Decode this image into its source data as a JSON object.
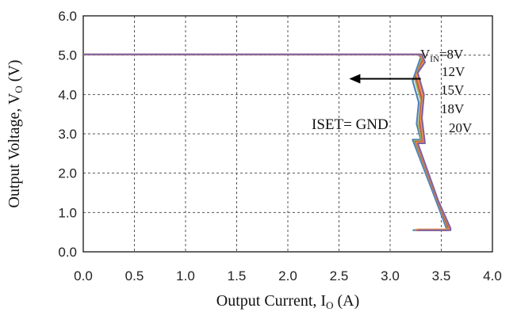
{
  "chart_data": {
    "type": "line",
    "xlabel": {
      "main": "Output Current, I",
      "sub": "O",
      "unit": " (A)"
    },
    "ylabel": {
      "main": "Output Voltage, V",
      "sub": "O",
      "unit": " (V)"
    },
    "xlim": [
      0,
      4
    ],
    "ylim": [
      0,
      6
    ],
    "x_ticks": [
      "0.0",
      "0.5",
      "1.0",
      "1.5",
      "2.0",
      "2.5",
      "3.0",
      "3.5",
      "4.0"
    ],
    "y_ticks": [
      "0.0",
      "1.0",
      "2.0",
      "3.0",
      "4.0",
      "5.0",
      "6.0"
    ],
    "grid": true,
    "legend": "none",
    "annotation_text": "ISET= GND",
    "vin_labels": [
      "=8V",
      "12V",
      "15V",
      "18V",
      "20V"
    ],
    "vin_first_prefix": {
      "main": "V",
      "sub": "IN"
    },
    "arrow": {
      "from": [
        3.3,
        4.4
      ],
      "to": [
        2.6,
        4.4
      ]
    },
    "series": [
      {
        "color": "#4f81bd",
        "x": [
          0,
          0.5,
          1.0,
          1.5,
          2.0,
          2.5,
          3.0,
          3.27,
          3.3,
          3.22,
          3.28,
          3.26,
          3.3,
          3.22,
          3.42,
          3.55,
          3.55,
          3.22
        ],
        "y": [
          5.02,
          5.02,
          5.02,
          5.02,
          5.02,
          5.02,
          5.02,
          5.02,
          4.95,
          4.35,
          3.8,
          3.25,
          2.85,
          2.85,
          1.5,
          0.6,
          0.55,
          0.55
        ]
      },
      {
        "color": "#9bbb59",
        "x": [
          0,
          0.5,
          1.0,
          1.5,
          2.0,
          2.5,
          3.0,
          3.28,
          3.31,
          3.24,
          3.3,
          3.28,
          3.31,
          3.24,
          3.44,
          3.56,
          3.56,
          3.24
        ],
        "y": [
          5.02,
          5.02,
          5.02,
          5.02,
          5.02,
          5.02,
          5.02,
          5.02,
          4.9,
          4.4,
          3.85,
          3.2,
          2.82,
          2.82,
          1.45,
          0.62,
          0.56,
          0.56
        ]
      },
      {
        "color": "#c0504d",
        "x": [
          0,
          0.5,
          1.0,
          1.5,
          2.0,
          2.5,
          3.0,
          3.29,
          3.32,
          3.25,
          3.31,
          3.29,
          3.32,
          3.25,
          3.45,
          3.57,
          3.57,
          3.25
        ],
        "y": [
          5.02,
          5.02,
          5.02,
          5.02,
          5.02,
          5.02,
          5.02,
          5.02,
          4.88,
          4.45,
          3.9,
          3.3,
          2.8,
          2.8,
          1.4,
          0.6,
          0.55,
          0.55
        ]
      },
      {
        "color": "#f79646",
        "x": [
          0,
          0.5,
          1.0,
          1.5,
          2.0,
          2.5,
          3.0,
          3.3,
          3.33,
          3.26,
          3.32,
          3.3,
          3.33,
          3.26,
          3.46,
          3.58,
          3.58,
          3.26
        ],
        "y": [
          5.02,
          5.02,
          5.02,
          5.02,
          5.02,
          5.02,
          5.02,
          5.02,
          4.85,
          4.5,
          3.95,
          3.35,
          2.78,
          2.78,
          1.35,
          0.62,
          0.57,
          0.57
        ]
      },
      {
        "color": "#8064a2",
        "x": [
          0,
          0.5,
          1.0,
          1.5,
          2.0,
          2.5,
          3.0,
          3.31,
          3.34,
          3.27,
          3.33,
          3.31,
          3.34,
          3.27,
          3.47,
          3.59,
          3.59,
          3.27
        ],
        "y": [
          5.02,
          5.02,
          5.02,
          5.02,
          5.02,
          5.02,
          5.02,
          5.02,
          4.82,
          4.55,
          4.0,
          3.4,
          2.76,
          2.76,
          1.3,
          0.6,
          0.55,
          0.55
        ]
      }
    ]
  }
}
